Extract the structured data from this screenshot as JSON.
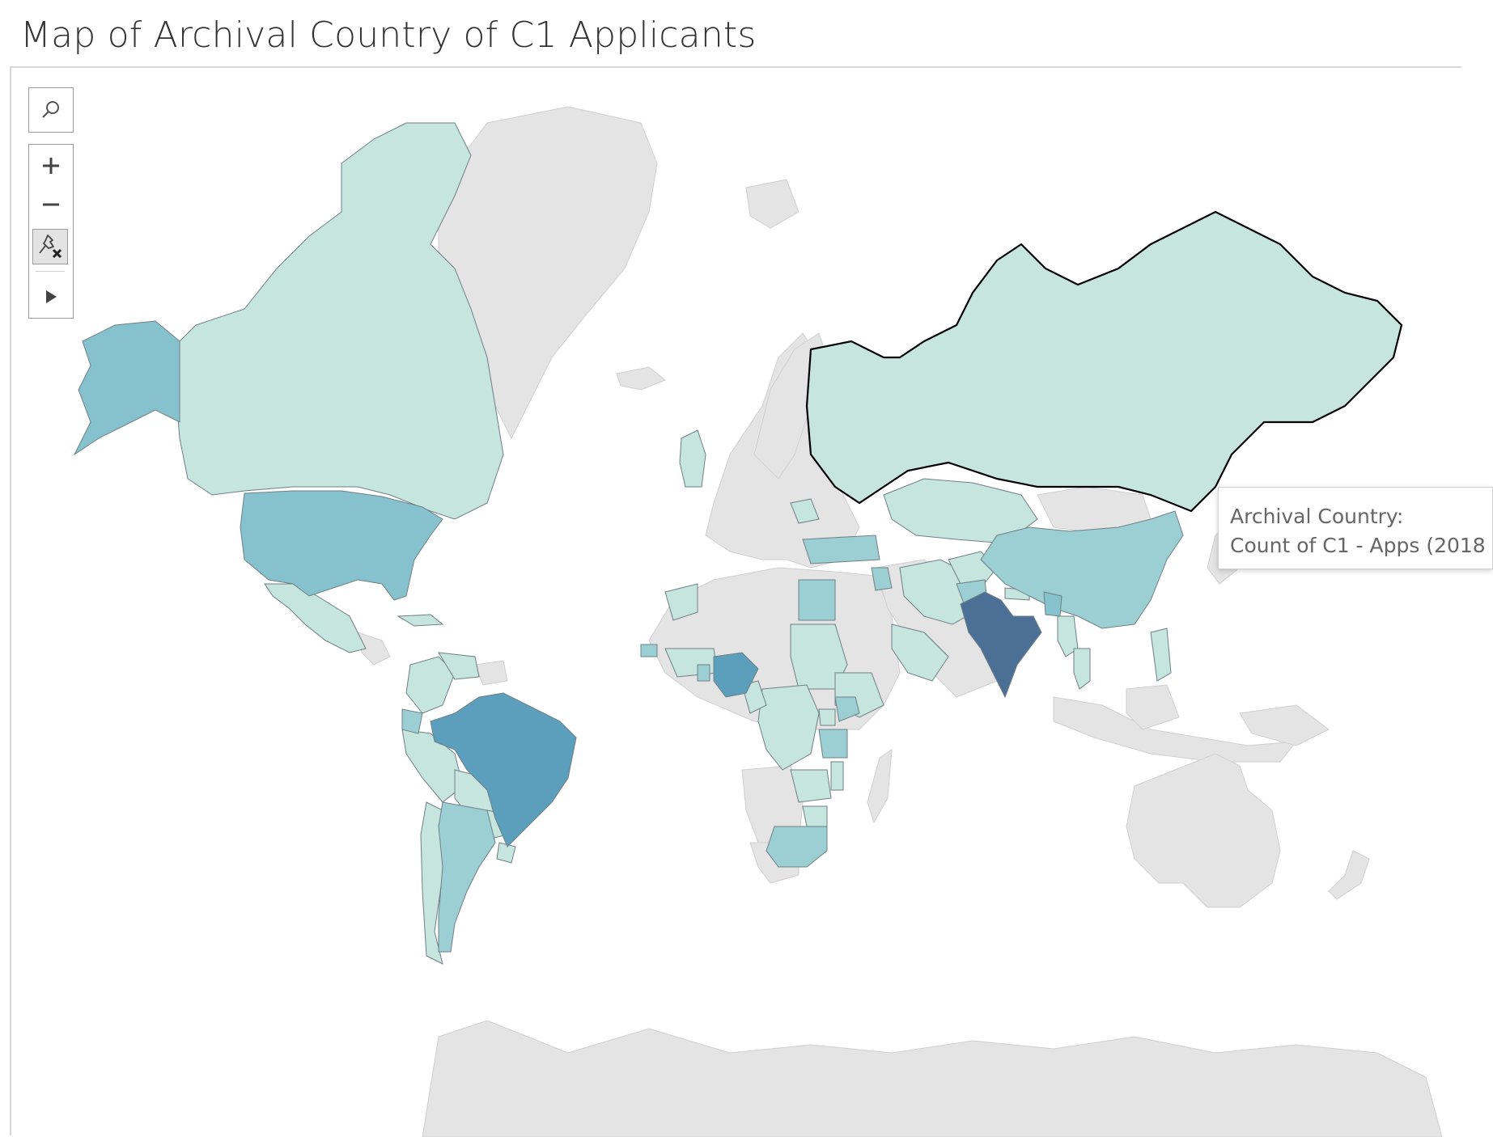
{
  "title": "Map of Archival Country of C1 Applicants",
  "toolbar": {
    "search_icon": "magnifier-icon",
    "zoom_in_icon": "plus-icon",
    "zoom_out_icon": "minus-icon",
    "unpin_icon": "pin-x-icon",
    "expand_icon": "play-triangle-icon"
  },
  "tooltip": {
    "line1": "Archival Country:",
    "line2": "Count of C1 - Apps (2018"
  },
  "colors": {
    "no_data": "#e4e4e4",
    "level1": "#c6e5de",
    "level2": "#9ccfd4",
    "level3": "#86c2cd",
    "level4": "#5b9fbc",
    "level5": "#4c6f96",
    "border": "#6f7f86",
    "highlight_border": "#000000"
  },
  "choropleth": {
    "measure": "Count of C1 - Apps (2018",
    "levels": [
      {
        "level": 5,
        "countries": [
          "India"
        ]
      },
      {
        "level": 4,
        "countries": [
          "Brazil",
          "Nigeria"
        ]
      },
      {
        "level": 3,
        "countries": [
          "United States",
          "Bangladesh"
        ]
      },
      {
        "level": 2,
        "countries": [
          "China",
          "Argentina",
          "Egypt",
          "South Africa",
          "Ecuador",
          "Kenya",
          "Tanzania",
          "Senegal",
          "Iraq",
          "Turkey",
          "Pakistan",
          "Ghana"
        ]
      },
      {
        "level": 1,
        "countries": [
          "Canada",
          "Russia",
          "Mexico",
          "Colombia",
          "Peru",
          "Chile",
          "Kazakhstan",
          "Iran",
          "Saudi Arabia",
          "Sudan",
          "Ethiopia",
          "DR Congo",
          "Zambia",
          "Zimbabwe",
          "Malawi",
          "United Kingdom",
          "Romania",
          "Cuba",
          "Venezuela",
          "Afghanistan",
          "Nepal",
          "Myanmar",
          "Thailand",
          "Philippines",
          "Uganda",
          "Cameroon",
          "Bolivia",
          "Paraguay",
          "Uruguay",
          "Morocco"
        ]
      }
    ]
  }
}
